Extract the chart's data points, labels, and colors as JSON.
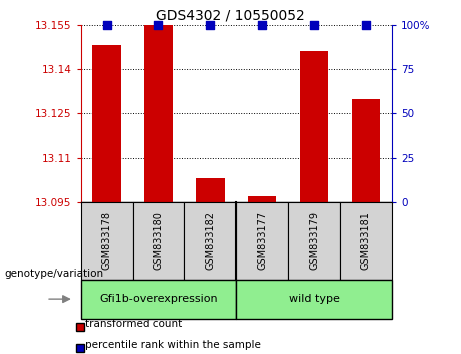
{
  "title": "GDS4302 / 10550052",
  "samples": [
    "GSM833178",
    "GSM833180",
    "GSM833182",
    "GSM833177",
    "GSM833179",
    "GSM833181"
  ],
  "red_values": [
    13.148,
    13.155,
    13.103,
    13.097,
    13.146,
    13.13
  ],
  "blue_values": [
    100,
    100,
    100,
    100,
    100,
    100
  ],
  "ymin": 13.095,
  "ymax": 13.155,
  "yticks": [
    13.095,
    13.11,
    13.125,
    13.14,
    13.155
  ],
  "ytick_labels": [
    "13.095",
    "13.11",
    "13.125",
    "13.14",
    "13.155"
  ],
  "y2ticks": [
    0,
    25,
    50,
    75,
    100
  ],
  "y2tick_labels": [
    "0",
    "25",
    "50",
    "75",
    "100%"
  ],
  "red_color": "#cc0000",
  "blue_color": "#0000bb",
  "group1_label": "Gfi1b-overexpression",
  "group2_label": "wild type",
  "group_color": "#90ee90",
  "sample_box_color": "#d3d3d3",
  "xlabel": "genotype/variation",
  "legend_red": "transformed count",
  "legend_blue": "percentile rank within the sample",
  "bar_width": 0.55,
  "title_fontsize": 10,
  "tick_fontsize": 7.5,
  "sample_fontsize": 7,
  "group_fontsize": 8,
  "legend_fontsize": 7.5
}
